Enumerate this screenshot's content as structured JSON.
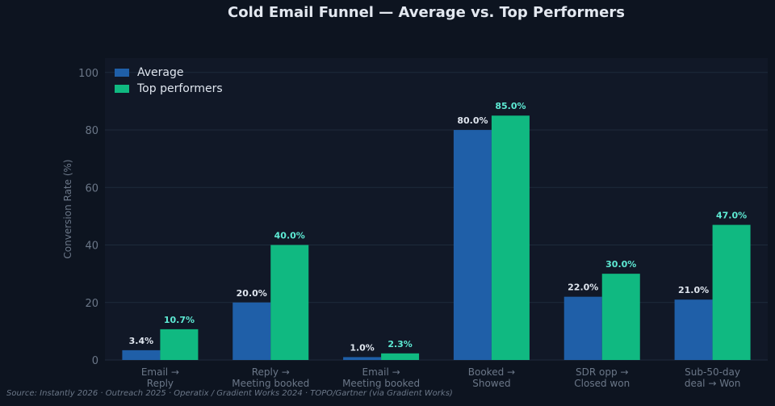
{
  "chart_data": {
    "type": "bar",
    "title": "Cold Email Funnel — Average vs. Top Performers",
    "ylabel": "Conversion Rate (%)",
    "xlabel": "",
    "ylim": [
      0,
      105
    ],
    "yticks": [
      0,
      20,
      40,
      60,
      80,
      100
    ],
    "grid": true,
    "legend_position": "top-left",
    "categories": [
      [
        "Email →",
        "Reply"
      ],
      [
        "Reply →",
        "Meeting booked"
      ],
      [
        "Email →",
        "Meeting booked"
      ],
      [
        "Booked →",
        "Showed"
      ],
      [
        "SDR opp →",
        "Closed won"
      ],
      [
        "Sub-50-day",
        "deal → Won"
      ]
    ],
    "series": [
      {
        "name": "Average",
        "color": "#1f5fa8",
        "label_color": "#dfe5ee",
        "values": [
          3.4,
          20.0,
          1.0,
          80.0,
          22.0,
          21.0
        ],
        "labels": [
          "3.4%",
          "20.0%",
          "1.0%",
          "80.0%",
          "22.0%",
          "21.0%"
        ]
      },
      {
        "name": "Top performers",
        "color": "#10b981",
        "label_color": "#5eead4",
        "values": [
          10.7,
          40.0,
          2.3,
          85.0,
          30.0,
          47.0
        ],
        "labels": [
          "10.7%",
          "40.0%",
          "2.3%",
          "85.0%",
          "30.0%",
          "47.0%"
        ]
      }
    ]
  },
  "footer": {
    "source": "Source: Instantly 2026 · Outreach 2025 · Operatix / Gradient Works 2024 · TOPO/Gartner (via Gradient Works)"
  },
  "colors": {
    "background": "#0d1420",
    "plot_background": "#111827",
    "grid": "#1e2a3b",
    "axis_text": "#6b7788"
  }
}
